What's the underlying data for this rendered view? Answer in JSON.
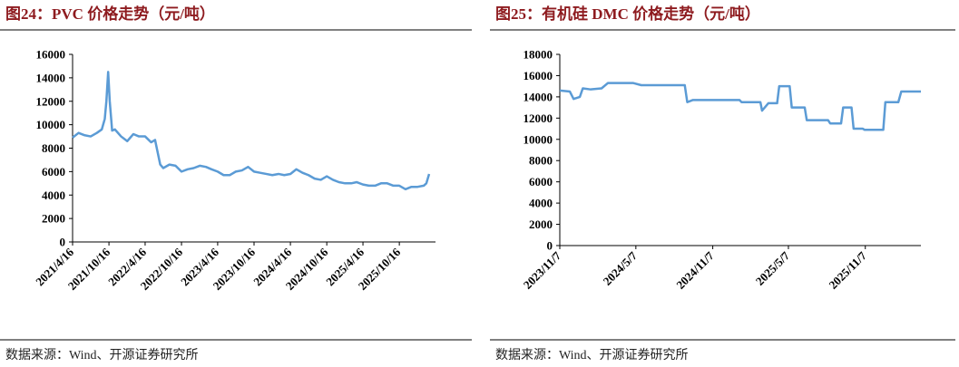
{
  "chart_data": [
    {
      "type": "line",
      "title": "图24：PVC 价格走势（元/吨）",
      "source": "数据来源：Wind、开源证券研究所",
      "color": "#5b9bd5",
      "x": [
        "2021/4/16",
        "2021/5/16",
        "2021/6/16",
        "2021/7/16",
        "2021/8/16",
        "2021/9/10",
        "2021/9/25",
        "2021/10/3",
        "2021/10/12",
        "2021/10/20",
        "2021/11/1",
        "2021/11/15",
        "2021/12/16",
        "2022/1/16",
        "2022/2/16",
        "2022/3/16",
        "2022/4/16",
        "2022/5/16",
        "2022/6/5",
        "2022/7/1",
        "2022/7/16",
        "2022/8/16",
        "2022/9/16",
        "2022/10/16",
        "2022/11/16",
        "2022/12/16",
        "2023/1/16",
        "2023/2/16",
        "2023/3/16",
        "2023/4/16",
        "2023/5/16",
        "2023/6/16",
        "2023/7/16",
        "2023/8/16",
        "2023/9/16",
        "2023/10/16",
        "2023/11/16",
        "2023/12/16",
        "2024/1/16",
        "2024/2/16",
        "2024/3/16",
        "2024/4/16",
        "2024/5/16",
        "2024/6/16",
        "2024/7/16",
        "2024/8/16",
        "2024/9/16",
        "2024/10/16",
        "2024/11/16",
        "2024/12/16",
        "2025/1/16",
        "2025/2/16",
        "2025/3/16",
        "2025/4/16",
        "2025/5/16",
        "2025/6/16",
        "2025/7/16",
        "2025/8/16",
        "2025/9/16",
        "2025/10/16",
        "2025/11/16",
        "2025/12/16",
        "2026/1/16",
        "2026/2/16",
        "2026/3/1",
        "2026/3/15"
      ],
      "values": [
        8900,
        9300,
        9100,
        9000,
        9300,
        9600,
        10500,
        12000,
        14500,
        12000,
        9500,
        9600,
        9000,
        8600,
        9200,
        9000,
        9000,
        8500,
        8700,
        6600,
        6300,
        6600,
        6500,
        6000,
        6200,
        6300,
        6500,
        6400,
        6200,
        6000,
        5700,
        5700,
        6000,
        6100,
        6400,
        6000,
        5900,
        5800,
        5700,
        5800,
        5700,
        5800,
        6200,
        5900,
        5700,
        5400,
        5300,
        5600,
        5300,
        5100,
        5000,
        5000,
        5100,
        4900,
        4800,
        4800,
        5000,
        5000,
        4800,
        4800,
        4500,
        4700,
        4700,
        4800,
        5000,
        5800
      ],
      "xlim": [
        "2021/4/16",
        "2026/4/16"
      ],
      "xticks": [
        "2021/4/16",
        "2021/10/16",
        "2022/4/16",
        "2022/10/16",
        "2023/4/16",
        "2023/10/16",
        "2024/4/16",
        "2024/10/16",
        "2025/4/16",
        "2025/10/16"
      ],
      "ylim": [
        0,
        16000
      ],
      "yticks": [
        0,
        2000,
        4000,
        6000,
        8000,
        10000,
        12000,
        14000,
        16000
      ]
    },
    {
      "type": "line",
      "title": "图25：有机硅 DMC 价格走势（元/吨）",
      "source": "数据来源：Wind、开源证券研究所",
      "color": "#5b9bd5",
      "x": [
        "2023/11/7",
        "2023/12/1",
        "2023/12/10",
        "2023/12/25",
        "2024/1/1",
        "2024/1/20",
        "2024/2/15",
        "2024/3/1",
        "2024/5/1",
        "2024/5/20",
        "2024/9/1",
        "2024/9/7",
        "2024/9/20",
        "2025/1/10",
        "2025/1/15",
        "2025/3/1",
        "2025/3/5",
        "2025/3/20",
        "2025/4/10",
        "2025/4/15",
        "2025/5/10",
        "2025/5/15",
        "2025/6/15",
        "2025/6/20",
        "2025/8/10",
        "2025/8/15",
        "2025/9/10",
        "2025/9/15",
        "2025/10/5",
        "2025/10/10",
        "2025/11/1",
        "2025/11/5",
        "2025/12/20",
        "2025/12/25",
        "2026/1/25",
        "2026/2/1",
        "2026/3/20"
      ],
      "values": [
        14600,
        14500,
        13800,
        14000,
        14800,
        14700,
        14800,
        15300,
        15300,
        15100,
        15100,
        13500,
        13700,
        13700,
        13500,
        13500,
        12700,
        13400,
        13400,
        15000,
        15000,
        13000,
        13000,
        11800,
        11800,
        11500,
        11500,
        13000,
        13000,
        11000,
        11000,
        10900,
        10900,
        13500,
        13500,
        14500,
        14500
      ],
      "xlim": [
        "2023/11/7",
        "2026/3/20"
      ],
      "xticks": [
        "2023/11/7",
        "2024/5/7",
        "2024/11/7",
        "2025/5/7",
        "2025/11/7"
      ],
      "ylim": [
        0,
        18000
      ],
      "yticks": [
        0,
        2000,
        4000,
        6000,
        8000,
        10000,
        12000,
        14000,
        16000,
        18000
      ]
    }
  ]
}
